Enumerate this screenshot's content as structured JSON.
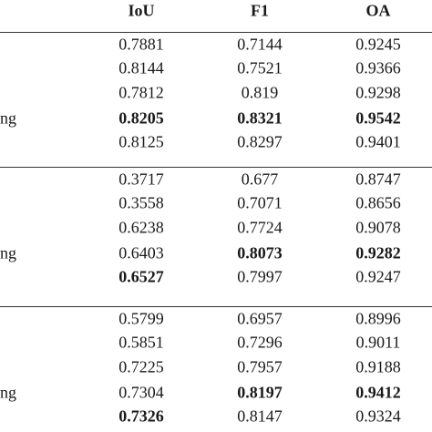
{
  "table": {
    "header": [
      "IoU",
      "F1",
      "OA"
    ],
    "groups": [
      {
        "label": "ng",
        "rows": [
          [
            {
              "text": "0.7881"
            },
            {
              "text": "0.7144"
            },
            {
              "text": "0.9245"
            }
          ],
          [
            {
              "text": "0.8144"
            },
            {
              "text": "0.7521"
            },
            {
              "text": "0.9366"
            }
          ],
          [
            {
              "text": "0.7812"
            },
            {
              "text": "0.819"
            },
            {
              "text": "0.9298"
            }
          ],
          [
            {
              "text": "0.8205",
              "bold": true
            },
            {
              "text": "0.8321",
              "bold": true
            },
            {
              "text": "0.9542",
              "bold": true
            }
          ],
          [
            {
              "text": "0.8125"
            },
            {
              "text": "0.8297"
            },
            {
              "text": "0.9401"
            }
          ]
        ]
      },
      {
        "label": "ng",
        "rows": [
          [
            {
              "text": "0.3717"
            },
            {
              "text": "0.677"
            },
            {
              "text": "0.8747"
            }
          ],
          [
            {
              "text": "0.3558"
            },
            {
              "text": "0.7071"
            },
            {
              "text": "0.8656"
            }
          ],
          [
            {
              "text": "0.6238"
            },
            {
              "text": "0.7724"
            },
            {
              "text": "0.9078"
            }
          ],
          [
            {
              "text": "0.6403"
            },
            {
              "text": "0.8073",
              "bold": true
            },
            {
              "text": "0.9282",
              "bold": true
            }
          ],
          [
            {
              "text": "0.6527",
              "bold": true
            },
            {
              "text": "0.7997"
            },
            {
              "text": "0.9247"
            }
          ]
        ]
      },
      {
        "label": "ng",
        "rows": [
          [
            {
              "text": "0.5799"
            },
            {
              "text": "0.6957"
            },
            {
              "text": "0.8996"
            }
          ],
          [
            {
              "text": "0.5851"
            },
            {
              "text": "0.7296"
            },
            {
              "text": "0.9011"
            }
          ],
          [
            {
              "text": "0.7225"
            },
            {
              "text": "0.7957"
            },
            {
              "text": "0.9188"
            }
          ],
          [
            {
              "text": "0.7304"
            },
            {
              "text": "0.8197",
              "bold": true
            },
            {
              "text": "0.9412",
              "bold": true
            }
          ],
          [
            {
              "text": "0.7326",
              "bold": true
            },
            {
              "text": "0.8147"
            },
            {
              "text": "0.9324"
            }
          ]
        ]
      }
    ]
  }
}
